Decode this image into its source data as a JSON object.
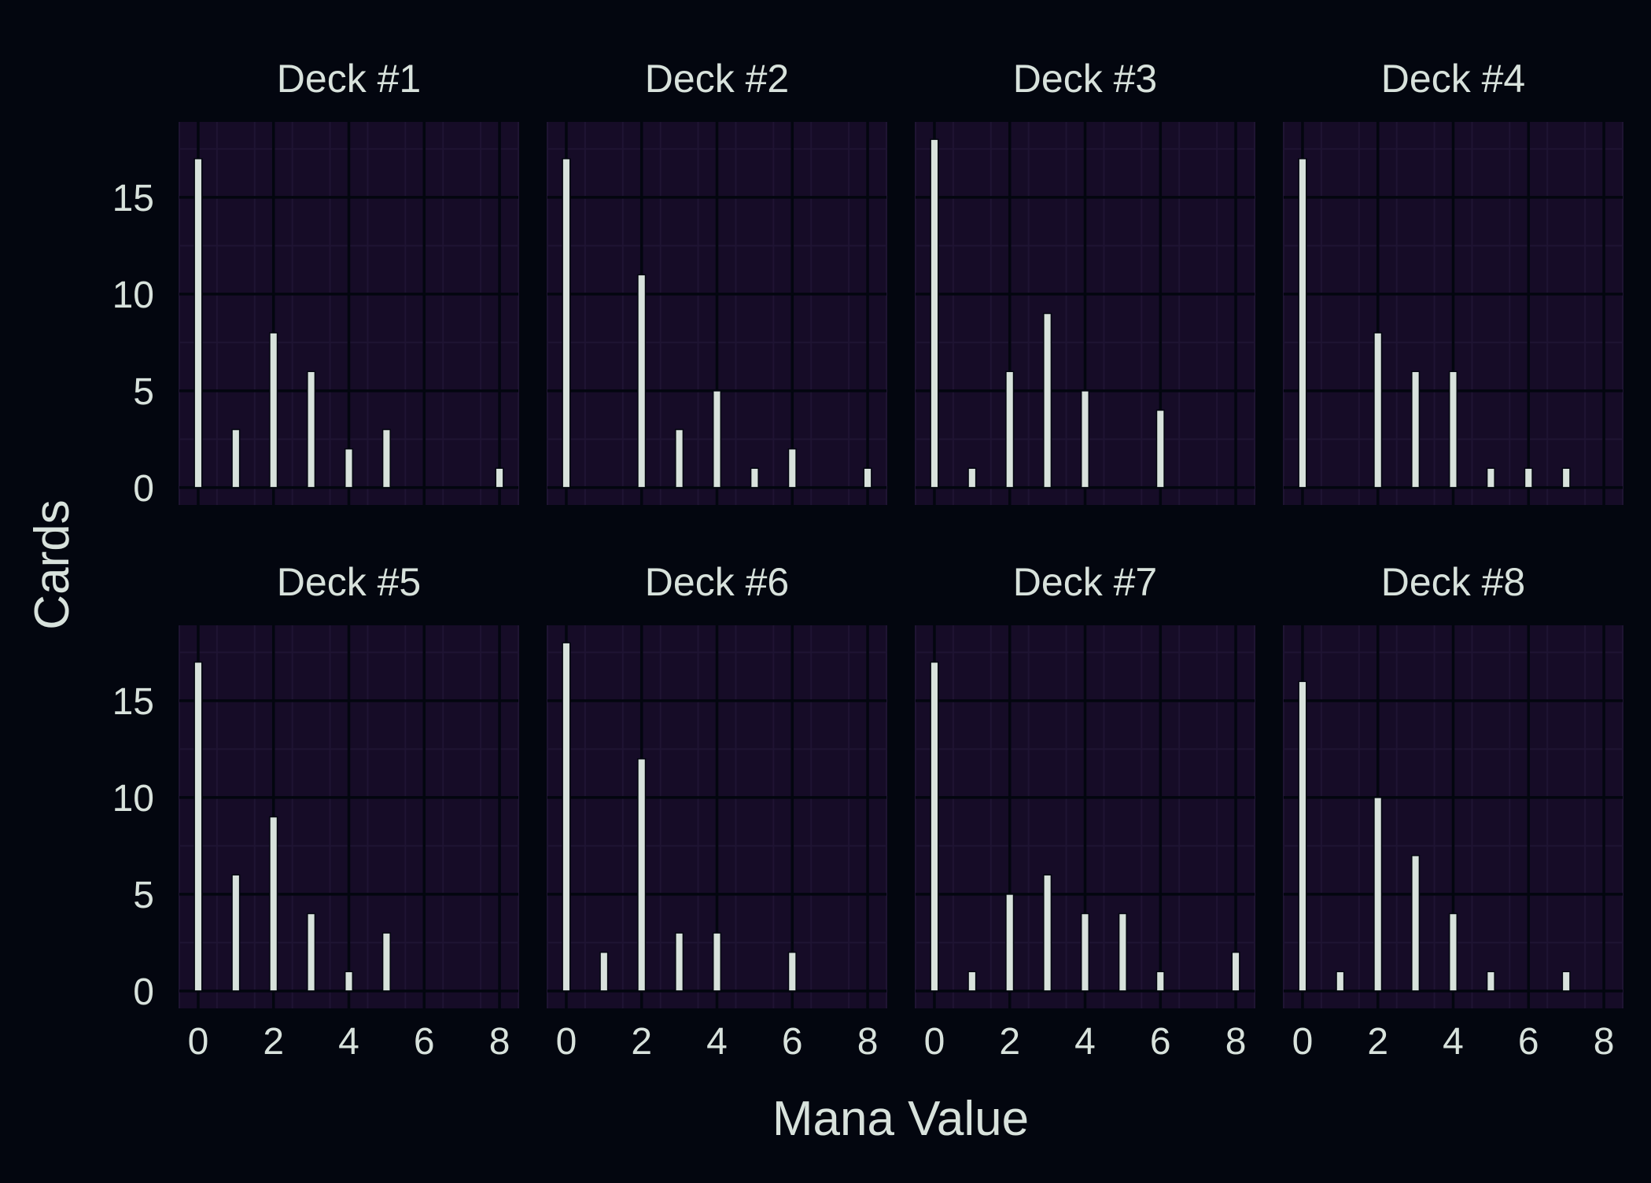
{
  "colors": {
    "background": "#03060f",
    "panel": "#160c27",
    "grid_major": "#03060f",
    "grid_minor": "#1f1433",
    "bar_fill": "#d8e2dc",
    "bar_stroke": "#03060f",
    "text": "#d8e2dc"
  },
  "chart_data": {
    "type": "bar",
    "layout": "facet-grid-2x4",
    "xlabel": "Mana Value",
    "ylabel": "Cards",
    "xlim": [
      -0.5,
      8.5
    ],
    "ylim": [
      -0.9,
      18.9
    ],
    "x_ticks": [
      "0",
      "2",
      "4",
      "6",
      "8"
    ],
    "y_ticks": [
      "0",
      "5",
      "10",
      "15"
    ],
    "grid": true,
    "legend": "none",
    "categories": [
      0,
      1,
      2,
      3,
      4,
      5,
      6,
      7,
      8
    ],
    "panels": [
      {
        "title": "Deck #1",
        "values": [
          17,
          3,
          8,
          6,
          2,
          3,
          0,
          0,
          1
        ]
      },
      {
        "title": "Deck #2",
        "values": [
          17,
          0,
          11,
          3,
          5,
          1,
          2,
          0,
          1
        ]
      },
      {
        "title": "Deck #3",
        "values": [
          18,
          1,
          6,
          9,
          5,
          0,
          4,
          0,
          0
        ]
      },
      {
        "title": "Deck #4",
        "values": [
          17,
          0,
          8,
          6,
          6,
          1,
          1,
          1,
          0
        ]
      },
      {
        "title": "Deck #5",
        "values": [
          17,
          6,
          9,
          4,
          1,
          3,
          0,
          0,
          0
        ]
      },
      {
        "title": "Deck #6",
        "values": [
          18,
          2,
          12,
          3,
          3,
          0,
          2,
          0,
          0
        ]
      },
      {
        "title": "Deck #7",
        "values": [
          17,
          1,
          5,
          6,
          4,
          4,
          1,
          0,
          2
        ]
      },
      {
        "title": "Deck #8",
        "values": [
          16,
          1,
          10,
          7,
          4,
          1,
          0,
          1,
          0
        ]
      }
    ]
  }
}
